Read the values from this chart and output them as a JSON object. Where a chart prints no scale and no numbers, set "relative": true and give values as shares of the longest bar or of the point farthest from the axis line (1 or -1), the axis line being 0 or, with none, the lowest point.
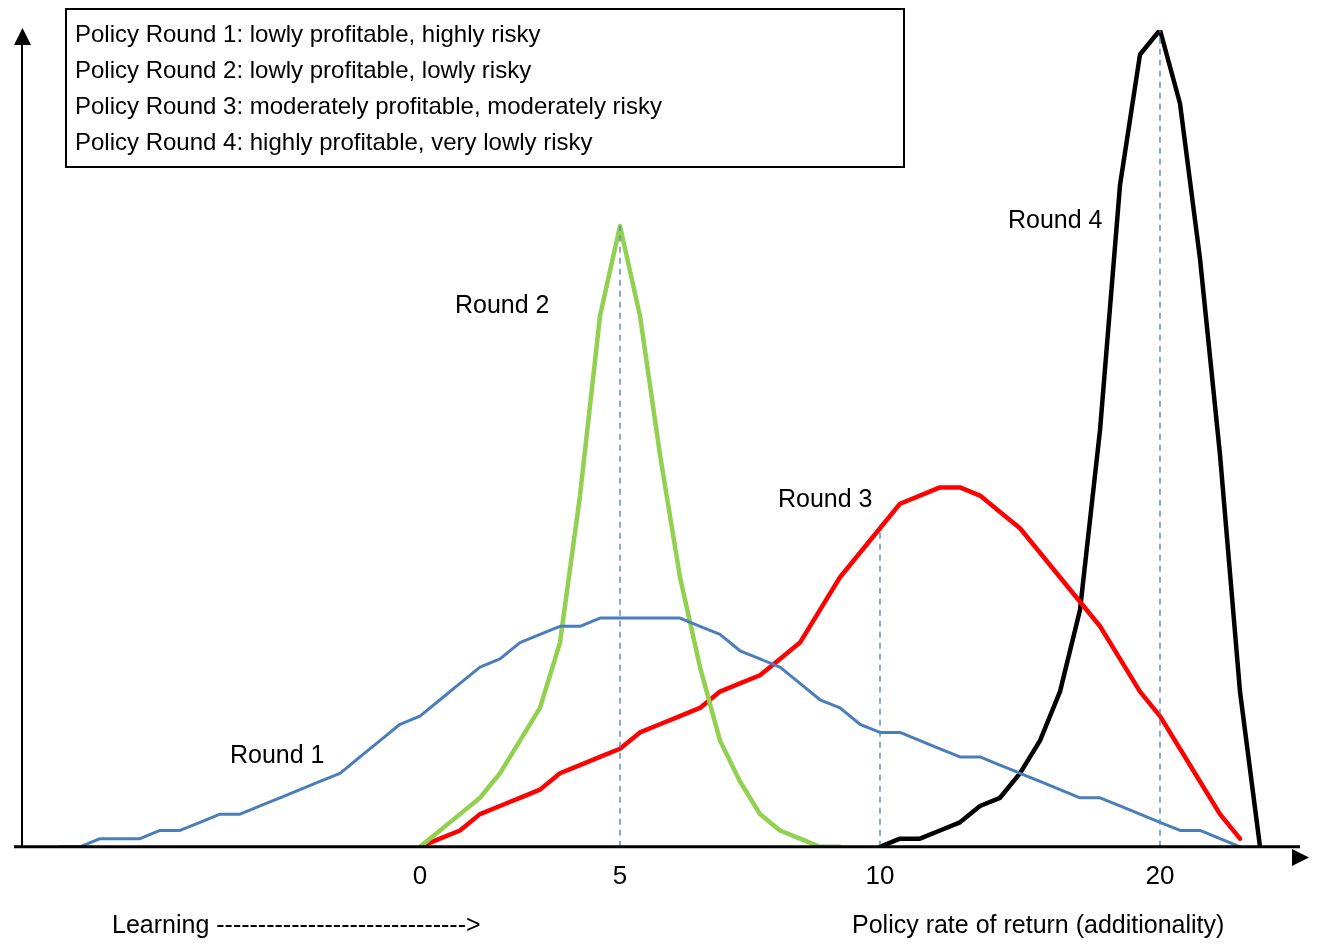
{
  "chart_data": {
    "type": "line",
    "relative": true,
    "xlabel": "Policy rate of return (additionality)",
    "categories": [
      null,
      null,
      null,
      null,
      null,
      null,
      null,
      null,
      null,
      null,
      null,
      null,
      null,
      null,
      null,
      null,
      null,
      null,
      "0",
      null,
      null,
      null,
      null,
      null,
      null,
      null,
      null,
      null,
      "5",
      null,
      null,
      null,
      null,
      null,
      null,
      null,
      null,
      null,
      null,
      null,
      null,
      "10",
      null,
      null,
      null,
      null,
      null,
      null,
      null,
      null,
      null,
      null,
      null,
      null,
      null,
      "20",
      null,
      null,
      null,
      null,
      null
    ],
    "series": [
      {
        "name": "Round 1",
        "color": "#4a7ebb",
        "values": [
          0,
          0,
          0.01,
          0.01,
          0.01,
          0.02,
          0.02,
          0.03,
          0.04,
          0.04,
          0.05,
          0.06,
          0.07,
          0.08,
          0.09,
          0.11,
          0.13,
          0.15,
          0.16,
          0.18,
          0.2,
          0.22,
          0.23,
          0.25,
          0.26,
          0.27,
          0.27,
          0.28,
          0.28,
          0.28,
          0.28,
          0.28,
          0.27,
          0.26,
          0.24,
          0.23,
          0.22,
          0.2,
          0.18,
          0.17,
          0.15,
          0.14,
          0.14,
          0.13,
          0.12,
          0.11,
          0.11,
          0.1,
          0.09,
          0.08,
          0.07,
          0.06,
          0.06,
          0.05,
          0.04,
          0.03,
          0.02,
          0.02,
          0.01,
          0,
          null
        ]
      },
      {
        "name": "Round 2",
        "color": "#92d050",
        "values": [
          null,
          null,
          null,
          null,
          null,
          null,
          null,
          null,
          null,
          null,
          null,
          null,
          null,
          null,
          null,
          null,
          null,
          null,
          0,
          0.02,
          0.04,
          0.06,
          0.09,
          0.13,
          0.17,
          0.25,
          0.43,
          0.65,
          0.76,
          0.65,
          0.48,
          0.33,
          0.22,
          0.13,
          0.08,
          0.04,
          0.02,
          0.01,
          0,
          0,
          null,
          null,
          null,
          null,
          null,
          null,
          null,
          null,
          null,
          null,
          null,
          null,
          null,
          null,
          null,
          null,
          null,
          null,
          null,
          null,
          null
        ]
      },
      {
        "name": "Round 3",
        "color": "#ff0000",
        "values": [
          null,
          null,
          null,
          null,
          null,
          null,
          null,
          null,
          null,
          null,
          null,
          null,
          null,
          null,
          null,
          null,
          null,
          null,
          0,
          0.01,
          0.02,
          0.04,
          0.05,
          0.06,
          0.07,
          0.09,
          0.1,
          0.11,
          0.12,
          0.14,
          0.15,
          0.16,
          0.17,
          0.19,
          0.2,
          0.21,
          0.23,
          0.25,
          0.29,
          0.33,
          0.36,
          0.39,
          0.42,
          0.43,
          0.44,
          0.44,
          0.43,
          0.41,
          0.39,
          0.36,
          0.33,
          0.3,
          0.27,
          0.23,
          0.19,
          0.16,
          0.12,
          0.08,
          0.04,
          0.01,
          null
        ]
      },
      {
        "name": "Round 4",
        "color": "#000000",
        "values": [
          null,
          null,
          null,
          null,
          null,
          null,
          null,
          null,
          null,
          null,
          null,
          null,
          null,
          null,
          null,
          null,
          null,
          null,
          null,
          null,
          null,
          null,
          null,
          null,
          null,
          null,
          null,
          null,
          null,
          null,
          null,
          null,
          null,
          null,
          null,
          null,
          null,
          null,
          null,
          null,
          null,
          0,
          0.01,
          0.01,
          0.02,
          0.03,
          0.05,
          0.06,
          0.09,
          0.13,
          0.19,
          0.29,
          0.51,
          0.81,
          0.97,
          1,
          0.91,
          0.72,
          0.48,
          0.19,
          0
        ]
      }
    ],
    "ref_lines": [
      {
        "axis": "x",
        "value": "5",
        "color": "#4a7ebb",
        "line_style": "dashed"
      },
      {
        "axis": "x",
        "value": "10",
        "color": "#4a7ebb",
        "line_style": "dashed"
      },
      {
        "axis": "x",
        "value": "20",
        "color": "#4a7ebb",
        "line_style": "dashed"
      }
    ],
    "annotations": [
      "Policy Round 1:  lowly profitable, highly risky",
      "Policy Round 2:  lowly profitable, lowly risky",
      "Policy Round 3:  moderately profitable, moderately risky",
      "Policy Round 4:  highly profitable, very lowly risky",
      "Learning ------------------------------>"
    ],
    "legend": false,
    "marker": "none",
    "line_style": "solid",
    "grid": false
  }
}
